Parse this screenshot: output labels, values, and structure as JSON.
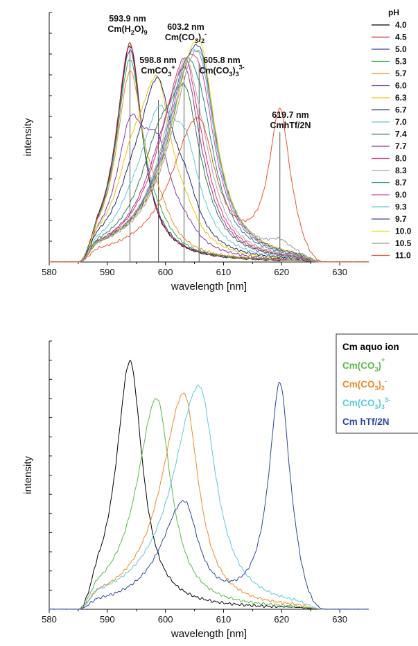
{
  "chart_data": [
    {
      "type": "line",
      "xlabel": "wavelength [nm]",
      "ylabel": "intensity",
      "xlim": [
        580,
        635
      ],
      "xticks": [
        "580",
        "590",
        "600",
        "610",
        "620",
        "630"
      ],
      "legend_title": "pH",
      "legend_position": "right",
      "series": [
        {
          "name": "4.0",
          "color": "#000000",
          "components": {
            "aquo": 1.0
          }
        },
        {
          "name": "4.5",
          "color": "#d01818",
          "components": {
            "aquo": 1.01
          }
        },
        {
          "name": "5.0",
          "color": "#3b3fa0",
          "components": {
            "aquo": 0.97,
            "mono": 0.02
          }
        },
        {
          "name": "5.3",
          "color": "#2eae3a",
          "components": {
            "aquo": 0.9,
            "mono": 0.08
          }
        },
        {
          "name": "5.7",
          "color": "#f08a24",
          "components": {
            "aquo": 0.8,
            "mono": 0.18
          }
        },
        {
          "name": "6.0",
          "color": "#7a3fb0",
          "components": {
            "aquo": 0.45,
            "mono": 0.45,
            "di": 0.08
          }
        },
        {
          "name": "6.3",
          "color": "#f2c200",
          "components": {
            "aquo": 0.2,
            "mono": 0.75,
            "di": 0.12
          }
        },
        {
          "name": "6.7",
          "color": "#1e2a78",
          "components": {
            "aquo": 0.1,
            "mono": 0.7,
            "di": 0.25
          }
        },
        {
          "name": "7.0",
          "color": "#5fc8d8",
          "components": {
            "aquo": 0.05,
            "mono": 0.45,
            "di": 0.45,
            "tri": 0.05
          }
        },
        {
          "name": "7.4",
          "color": "#2a7f4a",
          "components": {
            "mono": 0.25,
            "di": 0.65,
            "tri": 0.12
          }
        },
        {
          "name": "7.7",
          "color": "#8a3a9a",
          "components": {
            "mono": 0.1,
            "di": 0.75,
            "tri": 0.15
          }
        },
        {
          "name": "8.0",
          "color": "#e0306f",
          "components": {
            "mono": 0.05,
            "di": 0.75,
            "tri": 0.22
          }
        },
        {
          "name": "8.3",
          "color": "#a8a8a8",
          "components": {
            "di": 0.65,
            "tri": 0.35
          }
        },
        {
          "name": "8.7",
          "color": "#1e8a8a",
          "components": {
            "di": 0.45,
            "tri": 0.58
          }
        },
        {
          "name": "9.0",
          "color": "#d040a0",
          "components": {
            "di": 0.3,
            "tri": 0.75
          }
        },
        {
          "name": "9.3",
          "color": "#48b8cc",
          "components": {
            "di": 0.2,
            "tri": 0.85
          }
        },
        {
          "name": "9.7",
          "color": "#2f4aa8",
          "components": {
            "di": 0.12,
            "tri": 0.93
          }
        },
        {
          "name": "10.0",
          "color": "#f5d200",
          "components": {
            "di": 0.08,
            "tri": 0.98
          }
        },
        {
          "name": "10.5",
          "color": "#999999",
          "components": {
            "di": 0.08,
            "tri": 0.93,
            "htf": 0.05
          }
        },
        {
          "name": "11.0",
          "color": "#f0502a",
          "components": {
            "di": 0.05,
            "tri": 0.62,
            "htf": 0.67
          }
        }
      ],
      "annotations": [
        {
          "x": 593.9,
          "label": "593.9 nm",
          "species": "Cm(H",
          "sub1": "2",
          "mid": "O)",
          "sub2": "9",
          "sup": ""
        },
        {
          "x": 598.8,
          "label": "598.8 nm",
          "species": "CmCO",
          "sub1": "3",
          "mid": "",
          "sub2": "",
          "sup": "+"
        },
        {
          "x": 603.2,
          "label": "603.2 nm",
          "species": "Cm(CO",
          "sub1": "3",
          "mid": ")",
          "sub2": "2",
          "sup": "-"
        },
        {
          "x": 605.8,
          "label": "605.8 nm",
          "species": "Cm(CO",
          "sub1": "3",
          "mid": ")",
          "sub2": "3",
          "sup": "3-"
        },
        {
          "x": 619.7,
          "label": "619.7 nm",
          "species": "CmhTf/2N",
          "sub1": "",
          "mid": "",
          "sub2": "",
          "sup": ""
        }
      ]
    },
    {
      "type": "line",
      "xlabel": "wavelength [nm]",
      "ylabel": "intensity",
      "xlim": [
        580,
        635
      ],
      "xticks": [
        "580",
        "590",
        "600",
        "610",
        "620",
        "630"
      ],
      "legend_position": "top-right",
      "series": [
        {
          "name": "Cm aquo ion",
          "name_main": "Cm aquo ion",
          "sub": "",
          "mid": "",
          "sub2": "",
          "sup": "",
          "color": "#000000",
          "components": {
            "aquo": 1.0
          }
        },
        {
          "name": "Cm(CO3)+",
          "name_main": "Cm(CO",
          "sub": "3",
          "mid": ")",
          "sub2": "",
          "sup": "+",
          "color": "#5cb84a",
          "components": {
            "mono": 0.85
          }
        },
        {
          "name": "Cm(CO3)2-",
          "name_main": "Cm(CO",
          "sub": "3",
          "mid": ")",
          "sub2": "2",
          "sup": "-",
          "color": "#f08a24",
          "components": {
            "di": 0.87
          }
        },
        {
          "name": "Cm(CO3)3 3-",
          "name_main": "Cm(CO",
          "sub": "3",
          "mid": ")",
          "sub2": "3",
          "sup": "3-",
          "color": "#5cc8dc",
          "components": {
            "tri": 0.9
          }
        },
        {
          "name": "Cm hTf/2N",
          "name_main": "Cm hTf/2N",
          "sub": "",
          "mid": "",
          "sub2": "",
          "sup": "",
          "color": "#2a45a0",
          "components": {
            "htf": 0.9,
            "di": 0.42
          }
        }
      ]
    }
  ]
}
